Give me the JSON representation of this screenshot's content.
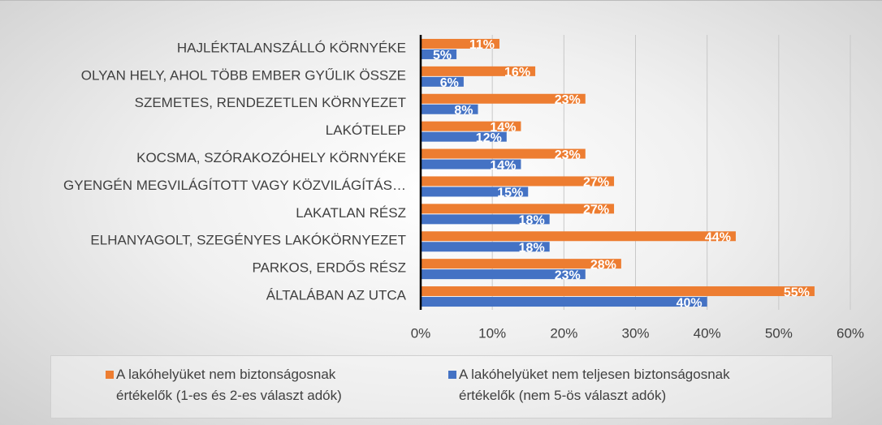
{
  "chart_data": {
    "type": "barh",
    "categories": [
      "HAJLÉKTALANSZÁLLÓ KÖRNYÉKE",
      "OLYAN HELY, AHOL TÖBB EMBER GYŰLIK ÖSSZE",
      "SZEMETES, RENDEZETLEN KÖRNYEZET",
      "LAKÓTELEP",
      "KOCSMA, SZÓRAKOZÓHELY KÖRNYÉKE",
      "GYENGÉN MEGVILÁGÍTOTT VAGY KÖZVILÁGÍTÁS…",
      "LAKATLAN RÉSZ",
      "ELHANYAGOLT, SZEGÉNYES LAKÓKÖRNYEZET",
      "PARKOS, ERDŐS RÉSZ",
      "ÁLTALÁBAN AZ UTCA"
    ],
    "series": [
      {
        "name": "A lakóhelyüket nem biztonságosnak értékelők (1-es és 2-es választ adók)",
        "color": "#ed7d31",
        "values": [
          11,
          16,
          23,
          14,
          23,
          27,
          27,
          44,
          28,
          55
        ],
        "value_labels": [
          "11%",
          "16%",
          "23%",
          "14%",
          "23%",
          "27%",
          "27%",
          "44%",
          "28%",
          "55%"
        ]
      },
      {
        "name": "A lakóhelyüket nem teljesen biztonságosnak értékelők (nem 5-ös választ adók)",
        "color": "#4472c4",
        "values": [
          5,
          6,
          8,
          12,
          14,
          15,
          18,
          18,
          23,
          40
        ],
        "value_labels": [
          "5%",
          "6%",
          "8%",
          "12%",
          "14%",
          "15%",
          "18%",
          "18%",
          "23%",
          "40%"
        ]
      }
    ],
    "xlim": [
      0,
      60
    ],
    "xticks": [
      {
        "value": 0,
        "label": "0%"
      },
      {
        "value": 10,
        "label": "10%"
      },
      {
        "value": 20,
        "label": "20%"
      },
      {
        "value": 30,
        "label": "30%"
      },
      {
        "value": 40,
        "label": "40%"
      },
      {
        "value": 50,
        "label": "50%"
      },
      {
        "value": 60,
        "label": "60%"
      }
    ],
    "grid": true
  }
}
